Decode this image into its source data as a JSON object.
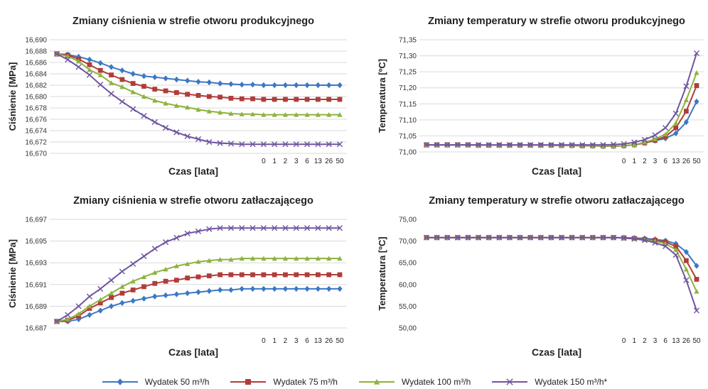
{
  "chart_data": [
    {
      "type": "line",
      "title": "Zmiany ciśnienia w strefie otworu produkcyjnego",
      "xlabel": "Czas [lata]",
      "ylabel": "Ciśnienie [MPa]",
      "ylim": [
        16.67,
        16.69
      ],
      "yticks": [
        "16,670",
        "16,672",
        "16,674",
        "16,676",
        "16,678",
        "16,680",
        "16,682",
        "16,684",
        "16,686",
        "16,688",
        "16,690"
      ],
      "x_tick_labels": [
        "0",
        "1",
        "2",
        "3",
        "6",
        "13",
        "26",
        "50"
      ],
      "grid": true,
      "series": [
        {
          "name": "Wydatek 50 m³/h",
          "values": [
            16.6875,
            16.6874,
            16.687,
            16.6865,
            16.6859,
            16.6852,
            16.6846,
            16.684,
            16.6836,
            16.6834,
            16.6832,
            16.683,
            16.6828,
            16.6826,
            16.6825,
            16.6823,
            16.6822,
            16.6821,
            16.6821,
            16.682,
            16.682,
            16.682,
            16.682,
            16.682,
            16.682,
            16.682,
            16.682
          ]
        },
        {
          "name": "Wydatek 75 m³/h",
          "values": [
            16.6875,
            16.6873,
            16.6866,
            16.6856,
            16.6846,
            16.6838,
            16.683,
            16.6823,
            16.6818,
            16.6813,
            16.681,
            16.6807,
            16.6804,
            16.6802,
            16.68,
            16.6799,
            16.6797,
            16.6796,
            16.6796,
            16.6795,
            16.6795,
            16.6795,
            16.6795,
            16.6795,
            16.6795,
            16.6795,
            16.6795
          ]
        },
        {
          "name": "Wydatek 100 m³/h",
          "values": [
            16.6875,
            16.6871,
            16.6862,
            16.6847,
            16.6838,
            16.6824,
            16.6817,
            16.6808,
            16.68,
            16.6793,
            16.6788,
            16.6784,
            16.6781,
            16.6777,
            16.6774,
            16.6772,
            16.677,
            16.6769,
            16.6769,
            16.6768,
            16.6768,
            16.6768,
            16.6768,
            16.6768,
            16.6768,
            16.6768,
            16.6768
          ]
        },
        {
          "name": "Wydatek 150 m³/h*",
          "values": [
            16.6875,
            16.6865,
            16.6852,
            16.6838,
            16.6821,
            16.6805,
            16.6791,
            16.6778,
            16.6766,
            16.6755,
            16.6745,
            16.6737,
            16.673,
            16.6725,
            16.672,
            16.6718,
            16.6717,
            16.6716,
            16.6716,
            16.6716,
            16.6716,
            16.6716,
            16.6716,
            16.6716,
            16.6716,
            16.6716,
            16.6716
          ]
        }
      ]
    },
    {
      "type": "line",
      "title": "Zmiany temperatury w strefie otworu produkcyjnego",
      "xlabel": "Czas [lata]",
      "ylabel": "Temperatura  [ºC]",
      "ylim": [
        71.0,
        71.35
      ],
      "yticks": [
        "71,00",
        "71,05",
        "71,10",
        "71,15",
        "71,20",
        "71,25",
        "71,30",
        "71,35"
      ],
      "x_tick_labels": [
        "0",
        "1",
        "2",
        "3",
        "6",
        "13",
        "26",
        "50"
      ],
      "grid": true,
      "series": [
        {
          "name": "Wydatek 50 m³/h",
          "values": [
            71.022,
            71.022,
            71.022,
            71.022,
            71.022,
            71.021,
            71.021,
            71.021,
            71.021,
            71.021,
            71.021,
            71.021,
            71.021,
            71.02,
            71.02,
            71.019,
            71.019,
            71.018,
            71.018,
            71.019,
            71.022,
            71.028,
            71.035,
            71.042,
            71.058,
            71.093,
            71.157
          ]
        },
        {
          "name": "Wydatek 75 m³/h",
          "values": [
            71.022,
            71.022,
            71.022,
            71.022,
            71.022,
            71.021,
            71.021,
            71.021,
            71.021,
            71.021,
            71.021,
            71.021,
            71.021,
            71.02,
            71.02,
            71.019,
            71.019,
            71.018,
            71.018,
            71.019,
            71.022,
            71.028,
            71.036,
            71.048,
            71.075,
            71.127,
            71.207
          ]
        },
        {
          "name": "Wydatek 100 m³/h",
          "values": [
            71.022,
            71.022,
            71.022,
            71.022,
            71.022,
            71.021,
            71.021,
            71.021,
            71.021,
            71.021,
            71.021,
            71.021,
            71.021,
            71.02,
            71.02,
            71.019,
            71.019,
            71.018,
            71.018,
            71.019,
            71.022,
            71.03,
            71.04,
            71.055,
            71.09,
            71.162,
            71.247
          ]
        },
        {
          "name": "Wydatek 150 m³/h*",
          "values": [
            71.022,
            71.022,
            71.022,
            71.022,
            71.022,
            71.022,
            71.022,
            71.022,
            71.022,
            71.022,
            71.022,
            71.022,
            71.022,
            71.022,
            71.022,
            71.022,
            71.022,
            71.022,
            71.023,
            71.025,
            71.03,
            71.038,
            71.052,
            71.075,
            71.12,
            71.205,
            71.308
          ]
        }
      ]
    },
    {
      "type": "line",
      "title": "Zmiany ciśnienia w strefie otworu  zatłaczającego",
      "xlabel": "Czas [lata]",
      "ylabel": "Ciśnienie [MPa]",
      "ylim": [
        16.687,
        16.697
      ],
      "yticks": [
        "16,687",
        "16,689",
        "16,691",
        "16,693",
        "16,695",
        "16,697"
      ],
      "x_tick_labels": [
        "0",
        "1",
        "2",
        "3",
        "6",
        "13",
        "26",
        "50"
      ],
      "grid": true,
      "series": [
        {
          "name": "Wydatek 50 m³/h",
          "values": [
            16.6876,
            16.6876,
            16.6878,
            16.6882,
            16.6886,
            16.689,
            16.6893,
            16.6895,
            16.6897,
            16.6899,
            16.69,
            16.6901,
            16.6902,
            16.6903,
            16.6904,
            16.6905,
            16.6905,
            16.6906,
            16.6906,
            16.6906,
            16.6906,
            16.6906,
            16.6906,
            16.6906,
            16.6906,
            16.6906,
            16.6906
          ]
        },
        {
          "name": "Wydatek 75 m³/h",
          "values": [
            16.6876,
            16.6877,
            16.6881,
            16.6888,
            16.6893,
            16.6898,
            16.6902,
            16.6905,
            16.6908,
            16.6911,
            16.6913,
            16.6914,
            16.6916,
            16.6917,
            16.6918,
            16.6919,
            16.6919,
            16.6919,
            16.6919,
            16.6919,
            16.6919,
            16.6919,
            16.6919,
            16.6919,
            16.6919,
            16.6919,
            16.6919
          ]
        },
        {
          "name": "Wydatek 100 m³/h",
          "values": [
            16.6876,
            16.6878,
            16.6883,
            16.689,
            16.6896,
            16.6902,
            16.6908,
            16.6913,
            16.6917,
            16.6921,
            16.6924,
            16.6927,
            16.6929,
            16.6931,
            16.6932,
            16.6933,
            16.6933,
            16.6934,
            16.6934,
            16.6934,
            16.6934,
            16.6934,
            16.6934,
            16.6934,
            16.6934,
            16.6934,
            16.6934
          ]
        },
        {
          "name": "Wydatek 150 m³/h*",
          "values": [
            16.6876,
            16.6882,
            16.689,
            16.6899,
            16.6906,
            16.6914,
            16.6922,
            16.6929,
            16.6936,
            16.6943,
            16.6949,
            16.6953,
            16.6957,
            16.6959,
            16.6961,
            16.6962,
            16.6962,
            16.6962,
            16.6962,
            16.6962,
            16.6962,
            16.6962,
            16.6962,
            16.6962,
            16.6962,
            16.6962,
            16.6962
          ]
        }
      ]
    },
    {
      "type": "line",
      "title": "Zmiany temperatury w strefie otworu  zatłaczającego",
      "xlabel": "Czas [lata]",
      "ylabel": "Temperatura  [ºC]",
      "ylim": [
        50.0,
        75.0
      ],
      "yticks": [
        "50,00",
        "55,00",
        "60,00",
        "65,00",
        "70,00",
        "75,00"
      ],
      "x_tick_labels": [
        "0",
        "1",
        "2",
        "3",
        "6",
        "13",
        "26",
        "50"
      ],
      "grid": false,
      "series": [
        {
          "name": "Wydatek 50 m³/h",
          "values": [
            70.8,
            70.8,
            70.8,
            70.8,
            70.8,
            70.8,
            70.8,
            70.8,
            70.8,
            70.8,
            70.8,
            70.8,
            70.8,
            70.8,
            70.8,
            70.8,
            70.8,
            70.8,
            70.8,
            70.8,
            70.7,
            70.6,
            70.4,
            70.1,
            69.4,
            67.5,
            64.3
          ]
        },
        {
          "name": "Wydatek 75 m³/h",
          "values": [
            70.8,
            70.8,
            70.8,
            70.8,
            70.8,
            70.8,
            70.8,
            70.8,
            70.8,
            70.8,
            70.8,
            70.8,
            70.8,
            70.8,
            70.8,
            70.8,
            70.8,
            70.8,
            70.8,
            70.7,
            70.6,
            70.4,
            70.2,
            69.8,
            68.8,
            65.5,
            61.2
          ]
        },
        {
          "name": "Wydatek 100 m³/h",
          "values": [
            70.8,
            70.8,
            70.8,
            70.8,
            70.8,
            70.8,
            70.8,
            70.8,
            70.8,
            70.8,
            70.8,
            70.8,
            70.8,
            70.8,
            70.8,
            70.8,
            70.8,
            70.8,
            70.8,
            70.7,
            70.5,
            70.3,
            70.0,
            69.4,
            68.0,
            63.5,
            58.4
          ]
        },
        {
          "name": "Wydatek 150 m³/h*",
          "values": [
            70.8,
            70.8,
            70.8,
            70.8,
            70.8,
            70.8,
            70.8,
            70.8,
            70.8,
            70.8,
            70.8,
            70.8,
            70.8,
            70.8,
            70.8,
            70.8,
            70.8,
            70.8,
            70.8,
            70.7,
            70.5,
            70.2,
            69.6,
            68.8,
            66.8,
            61.0,
            54.0
          ]
        }
      ]
    }
  ],
  "legend": {
    "items": [
      {
        "label": "Wydatek 50 m³/h",
        "color": "#3b78c4",
        "marker": "diamond"
      },
      {
        "label": "Wydatek 75 m³/h",
        "color": "#b13c3a",
        "marker": "square"
      },
      {
        "label": "Wydatek 100 m³/h",
        "color": "#8db33c",
        "marker": "triangle"
      },
      {
        "label": "Wydatek 150 m³/h*",
        "color": "#7054a0",
        "marker": "x"
      }
    ]
  }
}
